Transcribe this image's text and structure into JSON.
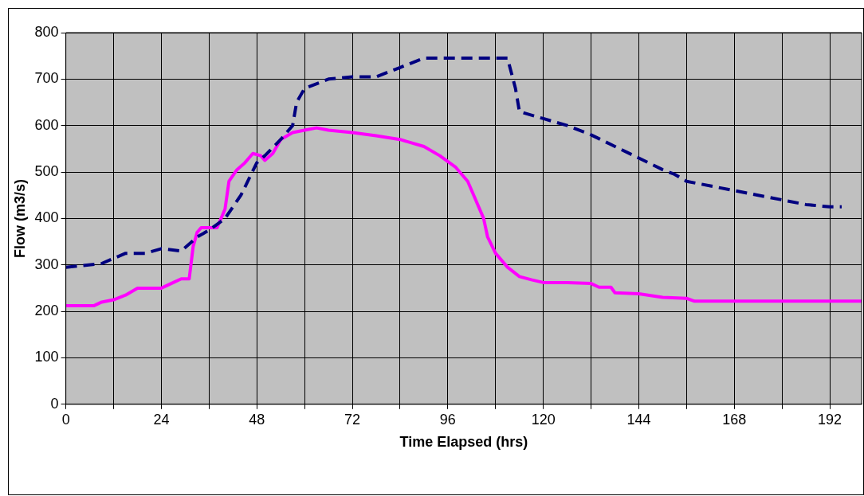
{
  "chart_data": {
    "type": "line",
    "xlabel": "Time Elapsed (hrs)",
    "ylabel": "Flow (m3/s)",
    "xlim": [
      0,
      200
    ],
    "xticks": [
      0,
      {
        "value": 12,
        "label": null
      },
      24,
      {
        "value": 36,
        "label": null
      },
      48,
      {
        "value": 60,
        "label": null
      },
      72,
      {
        "value": 84,
        "label": null
      },
      96,
      {
        "value": 108,
        "label": null
      },
      120,
      {
        "value": 132,
        "label": null
      },
      144,
      {
        "value": 156,
        "label": null
      },
      168,
      {
        "value": 180,
        "label": null
      },
      192
    ],
    "ylim": [
      0,
      800
    ],
    "yticks": [
      0,
      100,
      200,
      300,
      400,
      500,
      600,
      700,
      800
    ],
    "grid": true,
    "marker": "none",
    "series": [
      {
        "color": "#000080",
        "line_style": "dashed",
        "x": [
          0,
          9,
          15,
          20,
          24,
          29,
          33,
          36,
          40,
          44,
          48,
          50,
          54,
          57,
          58,
          60,
          66,
          72,
          78,
          84,
          90,
          96,
          108,
          111,
          113,
          114,
          120,
          126,
          132,
          138,
          144,
          150,
          153,
          156,
          162,
          168,
          174,
          180,
          186,
          192,
          195
        ],
        "values": [
          295,
          303,
          325,
          325,
          335,
          330,
          360,
          375,
          400,
          450,
          520,
          535,
          570,
          600,
          650,
          680,
          700,
          705,
          705,
          725,
          745,
          745,
          745,
          745,
          680,
          630,
          615,
          600,
          580,
          555,
          530,
          505,
          495,
          480,
          470,
          460,
          450,
          440,
          430,
          425,
          425
        ]
      },
      {
        "color": "#ff00ff",
        "line_style": "solid",
        "x": [
          0,
          7,
          9,
          12,
          15,
          18,
          24,
          27,
          29,
          31,
          32,
          33,
          34,
          38,
          40,
          41,
          43,
          45,
          47,
          49,
          50,
          52,
          54,
          57,
          60,
          63,
          66,
          72,
          78,
          84,
          90,
          94,
          98,
          101,
          103,
          105,
          106,
          108,
          111,
          114,
          117,
          120,
          126,
          132,
          134,
          137,
          138,
          144,
          150,
          156,
          158,
          165,
          200
        ],
        "values": [
          212,
          212,
          220,
          225,
          235,
          250,
          250,
          262,
          270,
          270,
          340,
          370,
          380,
          380,
          420,
          480,
          505,
          520,
          540,
          535,
          525,
          540,
          570,
          585,
          590,
          595,
          590,
          585,
          578,
          570,
          555,
          535,
          510,
          480,
          440,
          400,
          360,
          325,
          295,
          275,
          268,
          262,
          262,
          260,
          252,
          252,
          240,
          238,
          230,
          228,
          222,
          222,
          222
        ]
      }
    ]
  }
}
